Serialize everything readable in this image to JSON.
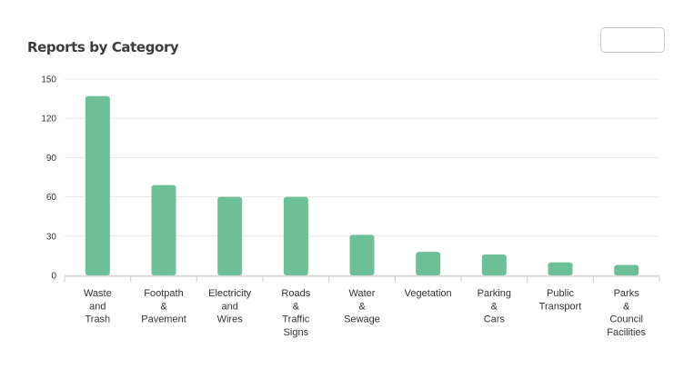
{
  "title": "Reports by Category",
  "filter_select": {
    "value": ""
  },
  "colors": {
    "bar": "#6dbf98",
    "grid": "#e6e6e6",
    "axis": "#cccccc",
    "text": "#333333"
  },
  "chart_data": {
    "type": "bar",
    "title": "Reports by Category",
    "xlabel": "",
    "ylabel": "",
    "ylim": [
      0,
      150
    ],
    "yticks": [
      0,
      30,
      60,
      90,
      120,
      150
    ],
    "grid": true,
    "legend": "none",
    "categories": [
      [
        "Waste",
        "and",
        "Trash"
      ],
      [
        "Footpath",
        "&",
        "Pavement"
      ],
      [
        "Electricity",
        "and",
        "Wires"
      ],
      [
        "Roads",
        "&",
        "Traffic",
        "Signs"
      ],
      [
        "Water",
        "&",
        "Sewage"
      ],
      [
        "Vegetation"
      ],
      [
        "Parking",
        "&",
        "Cars"
      ],
      [
        "Public",
        "Transport"
      ],
      [
        "Parks",
        "&",
        "Council",
        "Facilities"
      ]
    ],
    "values": [
      137,
      69,
      60,
      60,
      31,
      18,
      16,
      10,
      8
    ]
  }
}
